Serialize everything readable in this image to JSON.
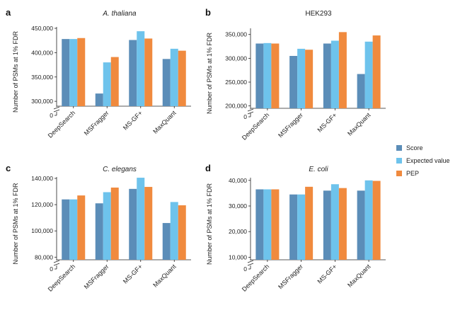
{
  "colors": {
    "Score": "#5b8db8",
    "Expected value": "#6ec3ec",
    "PEP": "#f08a3e"
  },
  "legend": [
    "Score",
    "Expected value",
    "PEP"
  ],
  "chart_data": [
    {
      "type": "bar",
      "panel_letter": "a",
      "title": "A. thaliana",
      "title_italic": true,
      "ylabel": "Number of PSMs at 1% FDR",
      "categories": [
        "DeepSearch",
        "MSFragger",
        "MS-GF+",
        "MaxQuant"
      ],
      "ylim": [
        290000,
        450000
      ],
      "y_axis_break": true,
      "yticks": [
        300000,
        350000,
        400000,
        450000
      ],
      "ytick_labels": [
        "300,000",
        "350,000",
        "400,000",
        "450,000"
      ],
      "baseline_label": "0",
      "series": [
        {
          "name": "Score",
          "values": [
            428000,
            316000,
            426000,
            387000
          ]
        },
        {
          "name": "Expected value",
          "values": [
            428000,
            380000,
            444000,
            408000
          ]
        },
        {
          "name": "PEP",
          "values": [
            430000,
            391000,
            429000,
            404000
          ]
        }
      ]
    },
    {
      "type": "bar",
      "panel_letter": "b",
      "title": "HEK293",
      "title_italic": false,
      "ylabel": "Number of PSMs at 1% FDR",
      "categories": [
        "DeepSearch",
        "MSFragger",
        "MS-GF+",
        "MaxQuant"
      ],
      "ylim": [
        195000,
        360000
      ],
      "y_axis_break": true,
      "yticks": [
        200000,
        250000,
        300000,
        350000
      ],
      "ytick_labels": [
        "200,000",
        "250,000",
        "300,000",
        "350,000"
      ],
      "baseline_label": "0",
      "series": [
        {
          "name": "Score",
          "values": [
            331000,
            305000,
            331000,
            267000
          ]
        },
        {
          "name": "Expected value",
          "values": [
            332000,
            320000,
            337000,
            335000
          ]
        },
        {
          "name": "PEP",
          "values": [
            331000,
            318000,
            355000,
            348000
          ]
        }
      ]
    },
    {
      "type": "bar",
      "panel_letter": "c",
      "title": "C. elegans",
      "title_italic": true,
      "ylabel": "Number of PSMs at 1% FDR",
      "categories": [
        "DeepSearch",
        "MSFragger",
        "MS-GF+",
        "MaxQuant"
      ],
      "ylim": [
        78000,
        140000
      ],
      "y_axis_break": true,
      "yticks": [
        80000,
        100000,
        120000,
        140000
      ],
      "ytick_labels": [
        "80,000",
        "100,000",
        "120,000",
        "140,000"
      ],
      "baseline_label": "0",
      "series": [
        {
          "name": "Score",
          "values": [
            124000,
            121000,
            132000,
            106000
          ]
        },
        {
          "name": "Expected value",
          "values": [
            124000,
            129500,
            140500,
            122000
          ]
        },
        {
          "name": "PEP",
          "values": [
            127000,
            133000,
            133500,
            119500
          ]
        }
      ]
    },
    {
      "type": "bar",
      "panel_letter": "d",
      "title": "E. coli",
      "title_italic": true,
      "ylabel": "Number of PSMs at 1% FDR",
      "categories": [
        "DeepSearch",
        "MSFragger",
        "MS-GF+",
        "MaxQuant"
      ],
      "ylim": [
        9000,
        40500
      ],
      "y_axis_break": true,
      "yticks": [
        10000,
        20000,
        30000,
        40000
      ],
      "ytick_labels": [
        "10,000",
        "20,000",
        "30,000",
        "40,000"
      ],
      "baseline_label": "0",
      "series": [
        {
          "name": "Score",
          "values": [
            36500,
            34500,
            36000,
            36000
          ]
        },
        {
          "name": "Expected value",
          "values": [
            36500,
            34500,
            38500,
            40000
          ]
        },
        {
          "name": "PEP",
          "values": [
            36500,
            37500,
            37000,
            39800
          ]
        }
      ]
    }
  ]
}
